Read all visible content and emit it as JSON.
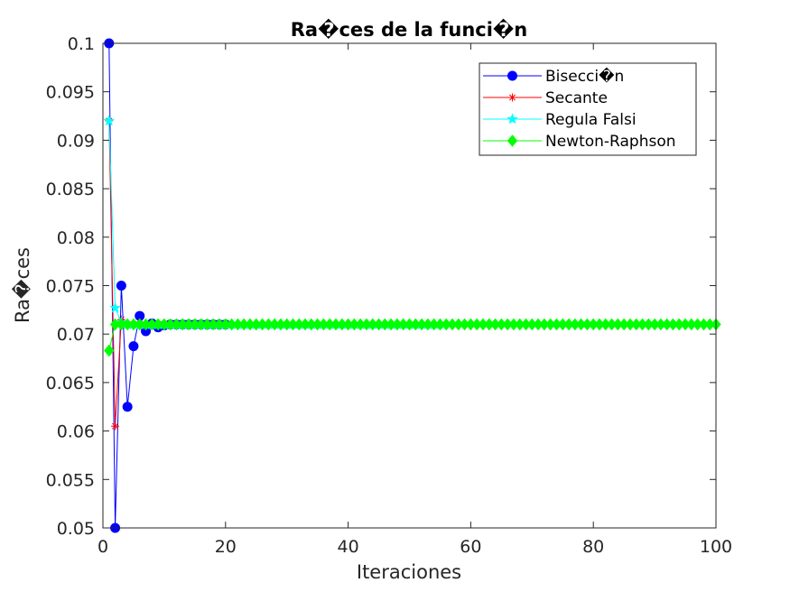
{
  "chart_data": {
    "type": "line",
    "title": "Ra�ces de la funci�n",
    "xlabel": "Iteraciones",
    "ylabel": "Ra�ces",
    "xlim": [
      0,
      100
    ],
    "ylim": [
      0.05,
      0.1
    ],
    "xticks": [
      0,
      20,
      40,
      60,
      80,
      100
    ],
    "xtick_labels": [
      "0",
      "20",
      "40",
      "60",
      "80",
      "100"
    ],
    "yticks": [
      0.05,
      0.055,
      0.06,
      0.065,
      0.07,
      0.075,
      0.08,
      0.085,
      0.09,
      0.095,
      0.1
    ],
    "ytick_labels": [
      "0.05",
      "0.055",
      "0.06",
      "0.065",
      "0.07",
      "0.075",
      "0.08",
      "0.085",
      "0.09",
      "0.095",
      "0.1"
    ],
    "grid": false,
    "legend_position": "top-right",
    "series": [
      {
        "name": "Bisecci�n",
        "color": "#0000ff",
        "marker": "circle",
        "x": [
          1,
          2,
          3,
          4,
          5,
          6,
          7,
          8,
          9,
          10,
          11,
          12,
          13,
          14,
          15,
          16,
          17,
          18,
          19,
          20
        ],
        "values": [
          0.1,
          0.05,
          0.075,
          0.0625,
          0.06875,
          0.071875,
          0.0703,
          0.0711,
          0.0707,
          0.0709,
          0.071,
          0.071,
          0.071,
          0.071,
          0.071,
          0.071,
          0.071,
          0.071,
          0.071,
          0.071
        ]
      },
      {
        "name": "Secante",
        "color": "#ff0000",
        "marker": "asterisk",
        "x": [
          1,
          2,
          3,
          4,
          5,
          6,
          7,
          8,
          9,
          10
        ],
        "values": [
          0.092,
          0.0605,
          0.0715,
          0.071,
          0.071,
          0.071,
          0.071,
          0.071,
          0.071,
          0.071
        ]
      },
      {
        "name": "Regula Falsi",
        "color": "#00ffff",
        "marker": "star",
        "x": [
          1,
          2,
          3,
          4,
          5,
          6,
          7,
          8,
          9,
          10,
          11,
          12,
          13,
          14,
          15,
          16,
          17,
          18,
          19,
          20,
          21,
          22,
          23,
          24,
          25,
          26,
          27,
          28,
          29,
          30,
          31,
          32,
          33,
          34,
          35,
          36,
          37,
          38,
          39,
          40,
          41,
          42,
          43,
          44,
          45,
          46,
          47,
          48,
          49,
          50,
          51,
          52,
          53,
          54,
          55
        ],
        "values": [
          0.092,
          0.0727,
          0.0712,
          0.071,
          0.071,
          0.071,
          0.071,
          0.071,
          0.071,
          0.071,
          0.071,
          0.071,
          0.071,
          0.071,
          0.071,
          0.071,
          0.071,
          0.071,
          0.071,
          0.071,
          0.071,
          0.071,
          0.071,
          0.071,
          0.071,
          0.071,
          0.071,
          0.071,
          0.071,
          0.071,
          0.071,
          0.071,
          0.071,
          0.071,
          0.071,
          0.071,
          0.071,
          0.071,
          0.071,
          0.071,
          0.071,
          0.071,
          0.071,
          0.071,
          0.071,
          0.071,
          0.071,
          0.071,
          0.071,
          0.071,
          0.071,
          0.071,
          0.071,
          0.071,
          0.071
        ]
      },
      {
        "name": "Newton-Raphson",
        "color": "#00ff00",
        "marker": "diamond",
        "x": [
          1,
          2,
          3,
          4,
          5,
          6,
          7,
          8,
          9,
          10,
          11,
          12,
          13,
          14,
          15,
          16,
          17,
          18,
          19,
          20,
          21,
          22,
          23,
          24,
          25,
          26,
          27,
          28,
          29,
          30,
          31,
          32,
          33,
          34,
          35,
          36,
          37,
          38,
          39,
          40,
          41,
          42,
          43,
          44,
          45,
          46,
          47,
          48,
          49,
          50,
          51,
          52,
          53,
          54,
          55,
          56,
          57,
          58,
          59,
          60,
          61,
          62,
          63,
          64,
          65,
          66,
          67,
          68,
          69,
          70,
          71,
          72,
          73,
          74,
          75,
          76,
          77,
          78,
          79,
          80,
          81,
          82,
          83,
          84,
          85,
          86,
          87,
          88,
          89,
          90,
          91,
          92,
          93,
          94,
          95,
          96,
          97,
          98,
          99,
          100
        ],
        "values": [
          0.0683,
          0.071,
          0.071,
          0.071,
          0.071,
          0.071,
          0.071,
          0.071,
          0.071,
          0.071,
          0.071,
          0.071,
          0.071,
          0.071,
          0.071,
          0.071,
          0.071,
          0.071,
          0.071,
          0.071,
          0.071,
          0.071,
          0.071,
          0.071,
          0.071,
          0.071,
          0.071,
          0.071,
          0.071,
          0.071,
          0.071,
          0.071,
          0.071,
          0.071,
          0.071,
          0.071,
          0.071,
          0.071,
          0.071,
          0.071,
          0.071,
          0.071,
          0.071,
          0.071,
          0.071,
          0.071,
          0.071,
          0.071,
          0.071,
          0.071,
          0.071,
          0.071,
          0.071,
          0.071,
          0.071,
          0.071,
          0.071,
          0.071,
          0.071,
          0.071,
          0.071,
          0.071,
          0.071,
          0.071,
          0.071,
          0.071,
          0.071,
          0.071,
          0.071,
          0.071,
          0.071,
          0.071,
          0.071,
          0.071,
          0.071,
          0.071,
          0.071,
          0.071,
          0.071,
          0.071,
          0.071,
          0.071,
          0.071,
          0.071,
          0.071,
          0.071,
          0.071,
          0.071,
          0.071,
          0.071,
          0.071,
          0.071,
          0.071,
          0.071,
          0.071,
          0.071,
          0.071,
          0.071,
          0.071,
          0.071
        ]
      }
    ]
  }
}
